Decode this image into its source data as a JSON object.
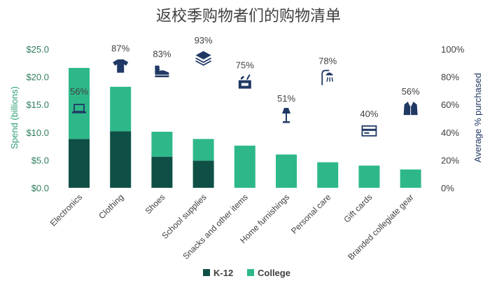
{
  "chart_data": {
    "type": "bar",
    "title": "返校季购物者们的购物清单",
    "ylabel": "Spend (billions)",
    "y2label": "Average % purchased",
    "ylim": [
      0,
      25
    ],
    "y2lim": [
      0,
      100
    ],
    "yticks": [
      "$0.0",
      "$5.0",
      "$10.0",
      "$15.0",
      "$20.0",
      "$25.0"
    ],
    "y2ticks": [
      "0%",
      "20%",
      "40%",
      "60%",
      "80%",
      "100%"
    ],
    "categories": [
      "Electronics",
      "Clothing",
      "Shoes",
      "School supplies",
      "Snacks and other items",
      "Home furnishings",
      "Personal care",
      "Gift cards",
      "Branded collegiate gear"
    ],
    "series": [
      {
        "name": "K-12",
        "values": [
          8.8,
          10.2,
          5.6,
          4.9,
          0,
          0,
          0,
          0,
          0
        ],
        "color": "#0f4f46"
      },
      {
        "name": "College",
        "values": [
          12.8,
          8.0,
          4.5,
          3.9,
          7.6,
          6.0,
          4.6,
          4.0,
          3.3
        ],
        "color": "#2eb88a"
      }
    ],
    "percent_purchased": [
      "56%",
      "87%",
      "83%",
      "93%",
      "75%",
      "51%",
      "78%",
      "40%",
      "56%"
    ],
    "percent_values": [
      56,
      87,
      83,
      93,
      75,
      51,
      78,
      40,
      56
    ],
    "icons": [
      "laptop-icon",
      "tshirt-icon",
      "sneaker-icon",
      "books-icon",
      "snack-box-icon",
      "lamp-icon",
      "shower-icon",
      "gift-card-icon",
      "jacket-icon"
    ],
    "legend": {
      "position": "bottom"
    },
    "grid": false,
    "icon_color": "#203864"
  }
}
